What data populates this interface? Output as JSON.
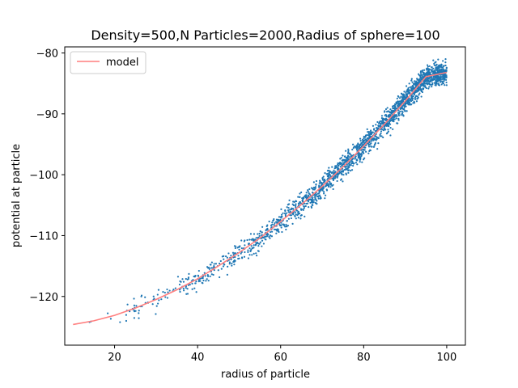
{
  "chart_data": {
    "type": "scatter",
    "title": "Density=500,N Particles=2000,Radius of sphere=100",
    "xlabel": "radius of particle",
    "ylabel": "potential at particle",
    "xlim": [
      8,
      104.5
    ],
    "ylim": [
      -128,
      -79
    ],
    "xticks": [
      20,
      40,
      60,
      80,
      100
    ],
    "yticks": [
      -120,
      -110,
      -100,
      -90,
      -80
    ],
    "grid": false,
    "legend_position": "upper-left",
    "series": [
      {
        "name": "",
        "kind": "scatter",
        "color": "#1f77b4",
        "count": 2000,
        "r_range": [
          10,
          100
        ],
        "spread_note_units": 4
      },
      {
        "name": "model",
        "kind": "line",
        "color": "#ff7f7f",
        "points": [
          [
            10,
            -124.6
          ],
          [
            15,
            -124.0
          ],
          [
            20,
            -123.1
          ],
          [
            25,
            -121.9
          ],
          [
            30,
            -120.5
          ],
          [
            35,
            -118.9
          ],
          [
            40,
            -117.1
          ],
          [
            45,
            -115.0
          ],
          [
            50,
            -112.8
          ],
          [
            55,
            -110.4
          ],
          [
            60,
            -107.7
          ],
          [
            65,
            -104.9
          ],
          [
            70,
            -101.9
          ],
          [
            75,
            -98.7
          ],
          [
            80,
            -95.3
          ],
          [
            85,
            -91.7
          ],
          [
            90,
            -87.9
          ],
          [
            95,
            -83.9
          ],
          [
            100,
            -83.2
          ]
        ]
      }
    ]
  }
}
